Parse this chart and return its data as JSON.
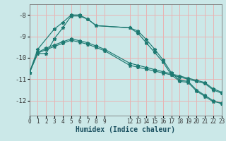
{
  "xlabel": "Humidex (Indice chaleur)",
  "bg_color": "#cbe8e8",
  "grid_color": "#e8b4b4",
  "line_color": "#1e7a72",
  "xlim": [
    0,
    23
  ],
  "ylim": [
    -12.7,
    -7.5
  ],
  "yticks": [
    -8,
    -9,
    -10,
    -11,
    -12
  ],
  "xticks": [
    0,
    1,
    2,
    3,
    4,
    5,
    6,
    7,
    8,
    9,
    12,
    13,
    14,
    15,
    16,
    17,
    18,
    19,
    20,
    21,
    22,
    23
  ],
  "lines": [
    {
      "x": [
        0,
        1,
        2,
        3,
        4,
        5,
        6,
        7,
        8,
        12,
        13,
        14,
        15,
        16,
        17,
        18,
        19,
        20,
        21,
        22,
        23
      ],
      "y": [
        -10.7,
        -9.8,
        -9.8,
        -9.1,
        -8.6,
        -8.05,
        -8.05,
        -8.2,
        -8.5,
        -8.6,
        -8.85,
        -9.3,
        -9.75,
        -10.2,
        -10.8,
        -11.1,
        -11.15,
        -11.55,
        -11.8,
        -12.05,
        -12.1
      ]
    },
    {
      "x": [
        0,
        1,
        3,
        4,
        5,
        6,
        7,
        8,
        12,
        13,
        14,
        15,
        16,
        17,
        18,
        19,
        20,
        21,
        22,
        23
      ],
      "y": [
        -10.7,
        -9.6,
        -8.65,
        -8.35,
        -8.0,
        -8.0,
        -8.2,
        -8.5,
        -8.6,
        -8.75,
        -9.15,
        -9.6,
        -10.1,
        -10.7,
        -11.05,
        -11.1,
        -11.5,
        -11.75,
        -12.0,
        -12.15
      ]
    },
    {
      "x": [
        0,
        1,
        2,
        3,
        4,
        5,
        6,
        7,
        8,
        9,
        12,
        13,
        14,
        15,
        16,
        17,
        18,
        19,
        20,
        21,
        22,
        23
      ],
      "y": [
        -10.7,
        -9.75,
        -9.55,
        -9.4,
        -9.25,
        -9.12,
        -9.2,
        -9.3,
        -9.45,
        -9.6,
        -10.25,
        -10.35,
        -10.45,
        -10.55,
        -10.65,
        -10.75,
        -10.85,
        -10.95,
        -11.05,
        -11.15,
        -11.45,
        -11.6
      ]
    },
    {
      "x": [
        0,
        1,
        2,
        3,
        4,
        5,
        6,
        7,
        8,
        9,
        12,
        13,
        14,
        15,
        16,
        17,
        18,
        19,
        20,
        21,
        22,
        23
      ],
      "y": [
        -10.7,
        -9.78,
        -9.62,
        -9.47,
        -9.32,
        -9.18,
        -9.27,
        -9.37,
        -9.52,
        -9.67,
        -10.35,
        -10.44,
        -10.53,
        -10.62,
        -10.71,
        -10.8,
        -10.9,
        -11.0,
        -11.1,
        -11.2,
        -11.5,
        -11.65
      ]
    }
  ]
}
